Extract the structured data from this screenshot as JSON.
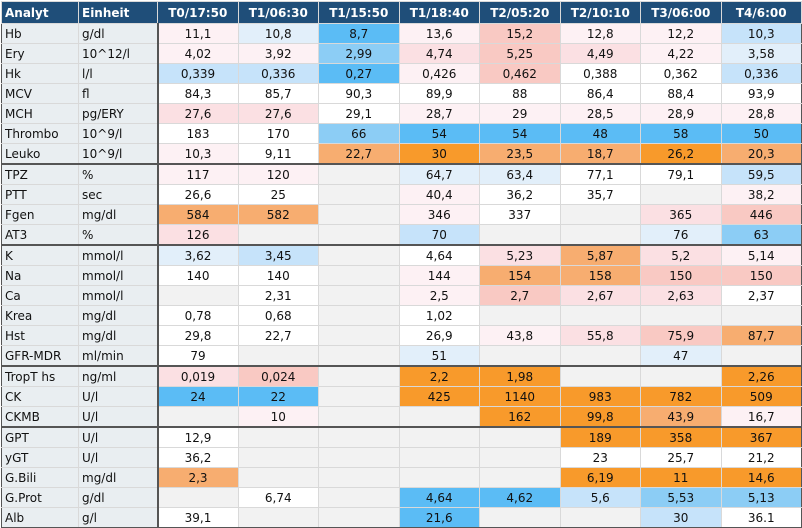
{
  "headers": [
    "Analyt",
    "Einheit",
    "T0/17:50",
    "T1/06:30",
    "T1/15:50",
    "T1/18:40",
    "T2/05:20",
    "T2/10:10",
    "T3/06:00",
    "T4/6:00"
  ],
  "colors": {
    "header_bg": "#1f4e79",
    "label_bg": "#e9eef1",
    "empty": "#ffffff",
    "grey": "#f2f2f2",
    "blue_strong": "#5bbcf5",
    "blue_mid": "#8ccdf5",
    "blue_light": "#c6e3fa",
    "blue_pale": "#e2effa",
    "orange_strong": "#f89a2b",
    "orange_mid": "#f7ad70",
    "pink": "#f9c9c3",
    "pink_light": "#fbe0e3",
    "pink_pale": "#fdf1f4"
  },
  "rows": [
    {
      "analyt": "Hb",
      "einheit": "g/dl",
      "values": [
        "11,1",
        "10,8",
        "8,7",
        "13,6",
        "15,2",
        "12,8",
        "12,2",
        "10,3"
      ],
      "shades": [
        "pink_pale",
        "blue_pale",
        "blue_strong",
        "pink_pale",
        "pink",
        "pink_pale",
        "pink_pale",
        "blue_light"
      ]
    },
    {
      "analyt": "Ery",
      "einheit": "10^12/l",
      "values": [
        "4,02",
        "3,92",
        "2,99",
        "4,74",
        "5,25",
        "4,49",
        "4,22",
        "3,58"
      ],
      "shades": [
        "pink_pale",
        "pink_pale",
        "blue_mid",
        "pink_light",
        "pink",
        "pink_light",
        "pink_pale",
        "blue_pale"
      ]
    },
    {
      "analyt": "Hk",
      "einheit": "l/l",
      "values": [
        "0,339",
        "0,336",
        "0,27",
        "0,426",
        "0,462",
        "0,388",
        "0,362",
        "0,336"
      ],
      "shades": [
        "blue_light",
        "blue_light",
        "blue_strong",
        "pink_pale",
        "pink",
        "empty",
        "empty",
        "blue_light"
      ]
    },
    {
      "analyt": "MCV",
      "einheit": "fl",
      "values": [
        "84,3",
        "85,7",
        "90,3",
        "89,9",
        "88",
        "86,4",
        "88,4",
        "93,9"
      ],
      "shades": [
        "empty",
        "empty",
        "empty",
        "empty",
        "empty",
        "empty",
        "empty",
        "empty"
      ]
    },
    {
      "analyt": "MCH",
      "einheit": "pg/ERY",
      "values": [
        "27,6",
        "27,6",
        "29,1",
        "28,7",
        "29",
        "28,5",
        "28,9",
        "28,8"
      ],
      "shades": [
        "pink_light",
        "pink_light",
        "empty",
        "pink_pale",
        "pink_pale",
        "pink_pale",
        "pink_pale",
        "pink_pale"
      ]
    },
    {
      "analyt": "Thrombo",
      "einheit": "10^9/l",
      "values": [
        "183",
        "170",
        "66",
        "54",
        "54",
        "48",
        "58",
        "50"
      ],
      "shades": [
        "empty",
        "empty",
        "blue_mid",
        "blue_strong",
        "blue_strong",
        "blue_strong",
        "blue_strong",
        "blue_strong"
      ]
    },
    {
      "analyt": "Leuko",
      "einheit": "10^9/l",
      "values": [
        "10,3",
        "9,11",
        "22,7",
        "30",
        "23,5",
        "18,7",
        "26,2",
        "20,3"
      ],
      "shades": [
        "pink_pale",
        "empty",
        "orange_mid",
        "orange_strong",
        "orange_mid",
        "orange_mid",
        "orange_strong",
        "orange_mid"
      ]
    },
    {
      "analyt": "TPZ",
      "einheit": "%",
      "values": [
        "117",
        "120",
        "",
        "64,7",
        "63,4",
        "77,1",
        "79,1",
        "59,5"
      ],
      "shades": [
        "pink_pale",
        "pink_pale",
        "grey",
        "blue_pale",
        "blue_pale",
        "empty",
        "empty",
        "blue_light"
      ]
    },
    {
      "analyt": "PTT",
      "einheit": "sec",
      "values": [
        "26,6",
        "25",
        "",
        "40,4",
        "36,2",
        "35,7",
        "",
        "38,2"
      ],
      "shades": [
        "empty",
        "empty",
        "grey",
        "pink_pale",
        "empty",
        "empty",
        "grey",
        "pink_pale"
      ]
    },
    {
      "analyt": "Fgen",
      "einheit": "mg/dl",
      "values": [
        "584",
        "582",
        "",
        "346",
        "337",
        "",
        "365",
        "446"
      ],
      "shades": [
        "orange_mid",
        "orange_mid",
        "grey",
        "pink_pale",
        "empty",
        "grey",
        "pink_light",
        "pink"
      ]
    },
    {
      "analyt": "AT3",
      "einheit": "%",
      "values": [
        "126",
        "",
        "",
        "70",
        "",
        "",
        "76",
        "63"
      ],
      "shades": [
        "pink_light",
        "grey",
        "grey",
        "blue_light",
        "grey",
        "grey",
        "blue_pale",
        "blue_mid"
      ]
    },
    {
      "analyt": "K",
      "einheit": "mmol/l",
      "values": [
        "3,62",
        "3,45",
        "",
        "4,64",
        "5,23",
        "5,87",
        "5,2",
        "5,14"
      ],
      "shades": [
        "blue_pale",
        "blue_light",
        "grey",
        "empty",
        "pink_light",
        "orange_mid",
        "pink_light",
        "pink_pale"
      ]
    },
    {
      "analyt": "Na",
      "einheit": "mmol/l",
      "values": [
        "140",
        "140",
        "",
        "144",
        "154",
        "158",
        "150",
        "150"
      ],
      "shades": [
        "empty",
        "empty",
        "grey",
        "pink_pale",
        "orange_mid",
        "orange_mid",
        "pink",
        "pink"
      ]
    },
    {
      "analyt": "Ca",
      "einheit": "mmol/l",
      "values": [
        "",
        "2,31",
        "",
        "2,5",
        "2,7",
        "2,67",
        "2,63",
        "2,37"
      ],
      "shades": [
        "grey",
        "empty",
        "grey",
        "pink_pale",
        "pink",
        "pink_light",
        "pink_light",
        "empty"
      ]
    },
    {
      "analyt": "Krea",
      "einheit": "mg/dl",
      "values": [
        "0,78",
        "0,68",
        "",
        "1,02",
        "",
        "",
        "",
        ""
      ],
      "shades": [
        "empty",
        "empty",
        "grey",
        "empty",
        "grey",
        "grey",
        "grey",
        "grey"
      ]
    },
    {
      "analyt": "Hst",
      "einheit": "mg/dl",
      "values": [
        "29,8",
        "22,7",
        "",
        "26,9",
        "43,8",
        "55,8",
        "75,9",
        "87,7"
      ],
      "shades": [
        "empty",
        "empty",
        "grey",
        "empty",
        "pink_pale",
        "pink_light",
        "pink",
        "orange_mid"
      ]
    },
    {
      "analyt": "GFR-MDR",
      "einheit": "ml/min",
      "values": [
        "79",
        "",
        "",
        "51",
        "",
        "",
        "47",
        ""
      ],
      "shades": [
        "empty",
        "grey",
        "grey",
        "blue_pale",
        "grey",
        "grey",
        "blue_pale",
        "grey"
      ]
    },
    {
      "analyt": "TropT hs",
      "einheit": "ng/ml",
      "values": [
        "0,019",
        "0,024",
        "",
        "2,2",
        "1,98",
        "",
        "",
        "2,26"
      ],
      "shades": [
        "pink_light",
        "pink",
        "grey",
        "orange_strong",
        "orange_strong",
        "grey",
        "grey",
        "orange_strong"
      ]
    },
    {
      "analyt": "CK",
      "einheit": "U/l",
      "values": [
        "24",
        "22",
        "",
        "425",
        "1140",
        "983",
        "782",
        "509"
      ],
      "shades": [
        "blue_strong",
        "blue_strong",
        "grey",
        "orange_strong",
        "orange_strong",
        "orange_strong",
        "orange_strong",
        "orange_strong"
      ]
    },
    {
      "analyt": "CKMB",
      "einheit": "U/l",
      "values": [
        "",
        "10",
        "",
        "",
        "162",
        "99,8",
        "43,9",
        "16,7"
      ],
      "shades": [
        "grey",
        "pink_pale",
        "grey",
        "grey",
        "orange_strong",
        "orange_strong",
        "orange_mid",
        "pink_pale"
      ]
    },
    {
      "analyt": "GPT",
      "einheit": "U/l",
      "values": [
        "12,9",
        "",
        "",
        "",
        "",
        "189",
        "358",
        "367"
      ],
      "shades": [
        "empty",
        "grey",
        "grey",
        "grey",
        "grey",
        "orange_strong",
        "orange_strong",
        "orange_strong"
      ]
    },
    {
      "analyt": "yGT",
      "einheit": "U/l",
      "values": [
        "36,2",
        "",
        "",
        "",
        "",
        "23",
        "25,7",
        "21,2"
      ],
      "shades": [
        "empty",
        "grey",
        "grey",
        "grey",
        "grey",
        "empty",
        "empty",
        "empty"
      ]
    },
    {
      "analyt": "G.Bili",
      "einheit": "mg/dl",
      "values": [
        "2,3",
        "",
        "",
        "",
        "",
        "6,19",
        "11",
        "14,6"
      ],
      "shades": [
        "orange_mid",
        "grey",
        "grey",
        "grey",
        "grey",
        "orange_strong",
        "orange_strong",
        "orange_strong"
      ]
    },
    {
      "analyt": "G.Prot",
      "einheit": "g/dl",
      "values": [
        "",
        "6,74",
        "",
        "4,64",
        "4,62",
        "5,6",
        "5,53",
        "5,13"
      ],
      "shades": [
        "grey",
        "empty",
        "grey",
        "blue_strong",
        "blue_strong",
        "blue_light",
        "blue_mid",
        "blue_mid"
      ]
    },
    {
      "analyt": "Alb",
      "einheit": "g/l",
      "values": [
        "39,1",
        "",
        "",
        "21,6",
        "",
        "",
        "30",
        "36.1"
      ],
      "shades": [
        "empty",
        "grey",
        "grey",
        "blue_strong",
        "grey",
        "grey",
        "blue_light",
        "empty"
      ]
    }
  ]
}
